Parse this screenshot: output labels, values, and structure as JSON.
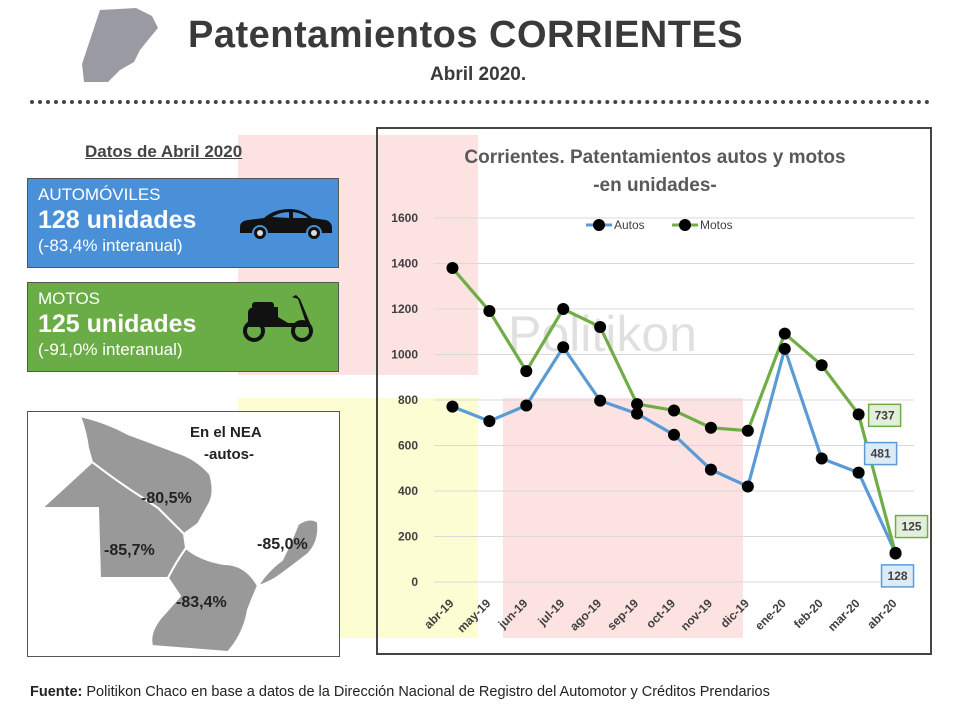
{
  "header": {
    "title": "Patentamientos CORRIENTES",
    "subtitle": "Abril 2020."
  },
  "datos": {
    "title": "Datos de Abril 2020",
    "autos": {
      "label": "AUTOMÓVILES",
      "value": "128 unidades",
      "pct": "(-83,4% interanual)"
    },
    "motos": {
      "label": "MOTOS",
      "value": "125 unidades",
      "pct": "(-91,0% interanual)"
    }
  },
  "nea": {
    "title": "En el NEA",
    "subtitle": "-autos-",
    "regions": [
      "-80,5%",
      "-85,7%",
      "-85,0%",
      "-83,4%"
    ]
  },
  "watermark": "Politikon",
  "chart_data": {
    "type": "line",
    "title": "Corrientes. Patentamientos autos y motos",
    "subtitle": "-en unidades-",
    "categories": [
      "abr-19",
      "may-19",
      "jun-19",
      "jul-19",
      "ago-19",
      "sep-19",
      "oct-19",
      "nov-19",
      "dic-19",
      "ene-20",
      "feb-20",
      "mar-20",
      "abr-20"
    ],
    "series": [
      {
        "name": "Autos",
        "color": "#5b9bd5",
        "values": [
          771,
          707,
          776,
          1032,
          797,
          740,
          647,
          494,
          420,
          1025,
          543,
          481,
          128
        ]
      },
      {
        "name": "Motos",
        "color": "#70ad47",
        "values": [
          1380,
          1191,
          927,
          1200,
          1121,
          782,
          754,
          678,
          665,
          1092,
          953,
          737,
          125
        ]
      }
    ],
    "ylim": [
      0,
      1600
    ],
    "yticks": [
      0,
      200,
      400,
      600,
      800,
      1000,
      1200,
      1400,
      1600
    ],
    "data_labels": [
      {
        "series": "Motos",
        "category": "mar-20",
        "text": "737"
      },
      {
        "series": "Autos",
        "category": "mar-20",
        "text": "481"
      },
      {
        "series": "Motos",
        "category": "abr-20",
        "text": "125"
      },
      {
        "series": "Autos",
        "category": "abr-20",
        "text": "128"
      }
    ],
    "legend": "top"
  },
  "footer": {
    "source_label": "Fuente:",
    "source_text": " Politikon Chaco en base a datos de la Dirección Nacional de Registro del Automotor y Créditos Prendarios"
  }
}
